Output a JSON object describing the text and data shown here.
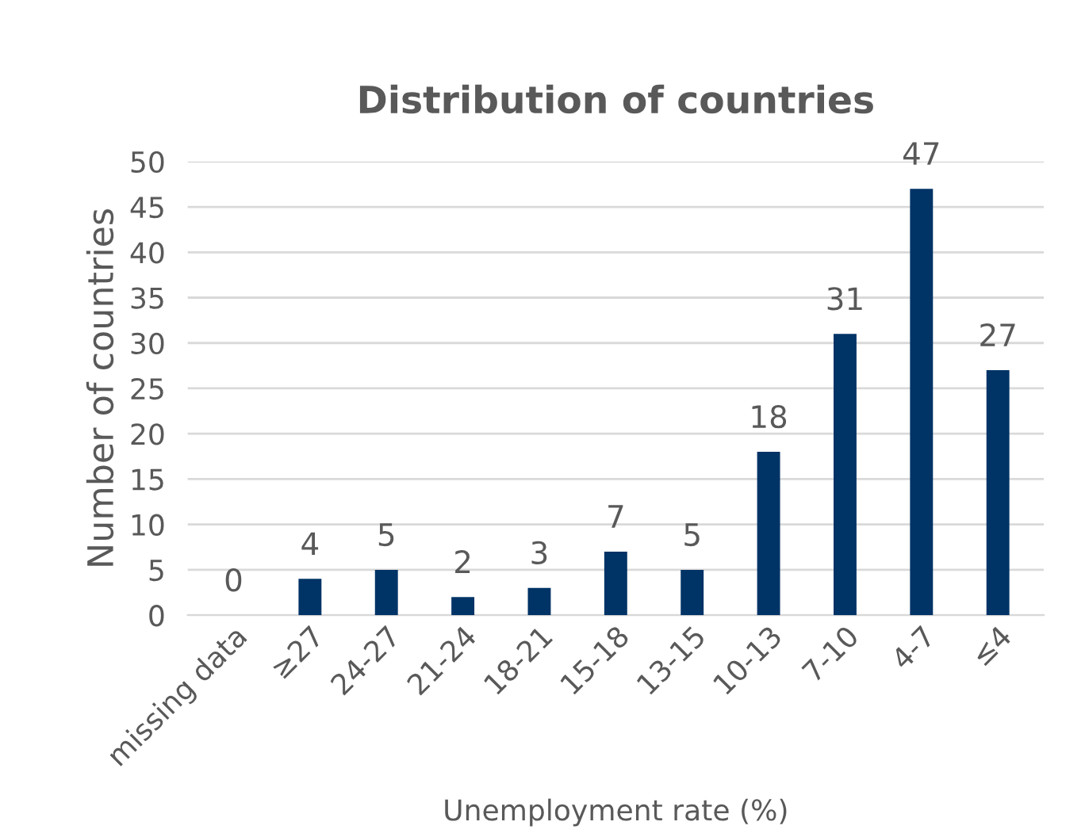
{
  "chart_data": {
    "type": "bar",
    "title": "Distribution of countries",
    "xlabel": "Unemployment rate (%)",
    "ylabel": "Number of countries",
    "categories": [
      "missing data",
      "≥27",
      "24-27",
      "21-24",
      "18-21",
      "15-18",
      "13-15",
      "10-13",
      "7-10",
      "4-7",
      "≤4"
    ],
    "values": [
      0,
      4,
      5,
      2,
      3,
      7,
      5,
      18,
      31,
      47,
      27
    ],
    "color": "#003366",
    "ylim": [
      0,
      50
    ],
    "yticks": [
      0,
      5,
      10,
      15,
      20,
      25,
      30,
      35,
      40,
      45,
      50
    ],
    "grid": "y",
    "data_labels": true,
    "legend": false
  }
}
